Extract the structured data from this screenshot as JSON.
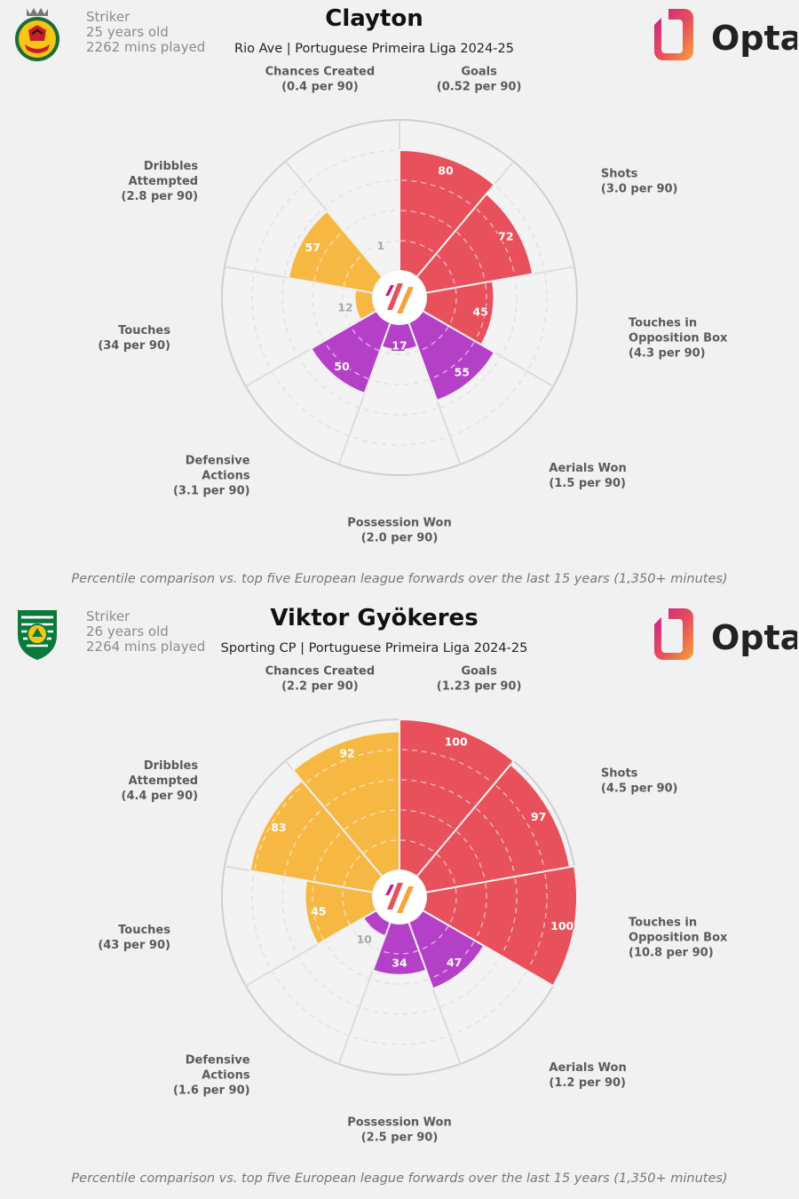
{
  "footer_text": "Percentile comparison vs. top five European league forwards over the last 15 years (1,350+ minutes)",
  "brand": {
    "name": "Opta"
  },
  "colors": {
    "attack": "#e8505b",
    "possession": "#f6b843",
    "defence": "#b540c8",
    "bg": "#f1f1f1"
  },
  "panels": [
    {
      "player": "Clayton",
      "position": "Striker",
      "age": "25 years old",
      "minutes": "2262 mins played",
      "subtitle": "Rio Ave | Portuguese Primeira Liga 2024-25",
      "crest": "rio-ave-crest",
      "footer": "Percentile comparison vs. top five European league forwards over the last 15 years (1,350+ minutes)",
      "chart_data": {
        "type": "polar-area",
        "scale": [
          0,
          100
        ],
        "metrics": [
          {
            "name": "Goals",
            "per90": "(0.52 per 90)",
            "value": 80,
            "group": "attack"
          },
          {
            "name": "Shots",
            "per90": "(3.0 per 90)",
            "value": 72,
            "group": "attack"
          },
          {
            "name": "Touches in Opposition Box",
            "per90": "(4.3 per 90)",
            "value": 45,
            "group": "attack"
          },
          {
            "name": "Aerials Won",
            "per90": "(1.5 per 90)",
            "value": 55,
            "group": "defence"
          },
          {
            "name": "Possession Won",
            "per90": "(2.0 per 90)",
            "value": 17,
            "group": "defence"
          },
          {
            "name": "Defensive Actions",
            "per90": "(3.1 per 90)",
            "value": 50,
            "group": "defence"
          },
          {
            "name": "Touches",
            "per90": "(34 per 90)",
            "value": 12,
            "group": "possession"
          },
          {
            "name": "Dribbles Attempted",
            "per90": "(2.8 per 90)",
            "value": 57,
            "group": "possession"
          },
          {
            "name": "Chances Created",
            "per90": "(0.4 per 90)",
            "value": 1,
            "group": "possession"
          }
        ]
      }
    },
    {
      "player": "Viktor Gyökeres",
      "position": "Striker",
      "age": "26 years old",
      "minutes": "2264 mins played",
      "subtitle": "Sporting CP | Portuguese Primeira Liga 2024-25",
      "crest": "sporting-cp-crest",
      "footer": "Percentile comparison vs. top five European league forwards over the last 15 years (1,350+ minutes)",
      "chart_data": {
        "type": "polar-area",
        "scale": [
          0,
          100
        ],
        "metrics": [
          {
            "name": "Goals",
            "per90": "(1.23 per 90)",
            "value": 100,
            "group": "attack"
          },
          {
            "name": "Shots",
            "per90": "(4.5 per 90)",
            "value": 97,
            "group": "attack"
          },
          {
            "name": "Touches in Opposition Box",
            "per90": "(10.8 per 90)",
            "value": 100,
            "group": "attack"
          },
          {
            "name": "Aerials Won",
            "per90": "(1.2 per 90)",
            "value": 47,
            "group": "defence"
          },
          {
            "name": "Possession Won",
            "per90": "(2.5 per 90)",
            "value": 34,
            "group": "defence"
          },
          {
            "name": "Defensive Actions",
            "per90": "(1.6 per 90)",
            "value": 10,
            "group": "defence"
          },
          {
            "name": "Touches",
            "per90": "(43 per 90)",
            "value": 45,
            "group": "possession"
          },
          {
            "name": "Dribbles Attempted",
            "per90": "(4.4 per 90)",
            "value": 83,
            "group": "possession"
          },
          {
            "name": "Chances Created",
            "per90": "(2.2 per 90)",
            "value": 92,
            "group": "possession"
          }
        ]
      }
    }
  ]
}
